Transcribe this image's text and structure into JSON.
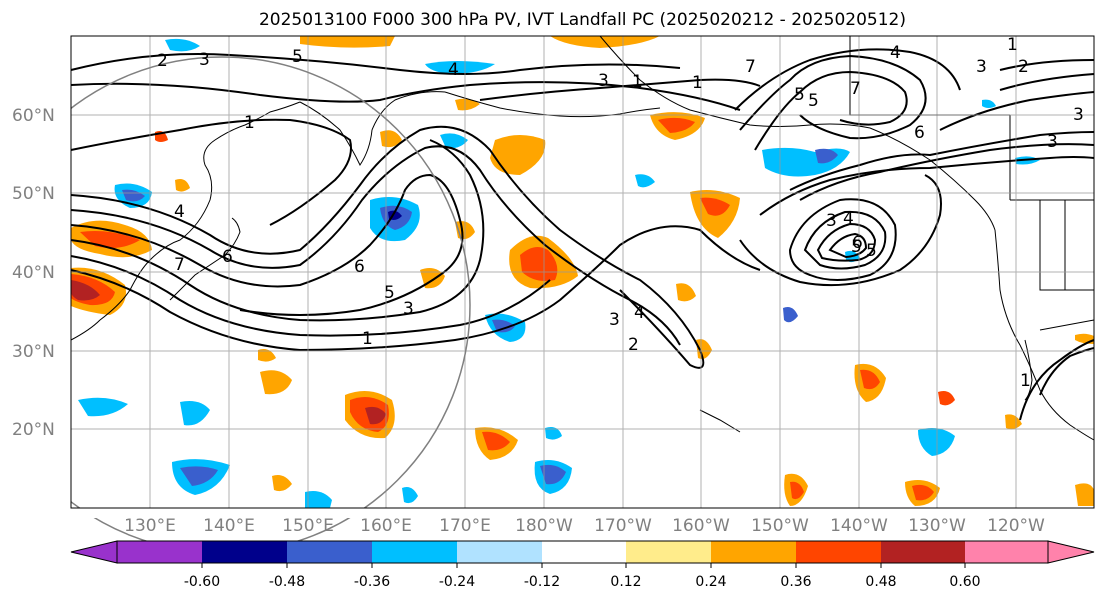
{
  "title": "2025013100 F000 300 hPa PV, IVT Landfall PC (2025020212 - 2025020512)",
  "map": {
    "lat_labels": [
      "60°N",
      "50°N",
      "40°N",
      "30°N",
      "20°N"
    ],
    "lon_labels": [
      "130°E",
      "140°E",
      "150°E",
      "160°E",
      "170°E",
      "180°W",
      "170°W",
      "160°W",
      "150°W",
      "140°W",
      "130°W",
      "120°W"
    ],
    "contour_labels": [
      "2",
      "3",
      "5",
      "6",
      "1",
      "7",
      "4",
      "3",
      "6",
      "5",
      "5",
      "3",
      "1",
      "3",
      "4",
      "2",
      "1",
      "4",
      "3",
      "1",
      "2",
      "3",
      "5",
      "1",
      "7",
      "4",
      "3",
      "4",
      "6",
      "5",
      "1",
      "6",
      "7",
      "5",
      "3"
    ]
  },
  "colorbar": {
    "colors": [
      "#9932cc",
      "#00008b",
      "#3a5fcd",
      "#00bfff",
      "#b0e2ff",
      "#ffffff",
      "#ffec8b",
      "#ffa500",
      "#ff4500",
      "#b22222",
      "#ff82ab"
    ],
    "tick_labels": [
      "-0.60",
      "-0.48",
      "-0.36",
      "-0.24",
      "-0.12",
      "0.12",
      "0.24",
      "0.36",
      "0.48",
      "0.60"
    ]
  }
}
